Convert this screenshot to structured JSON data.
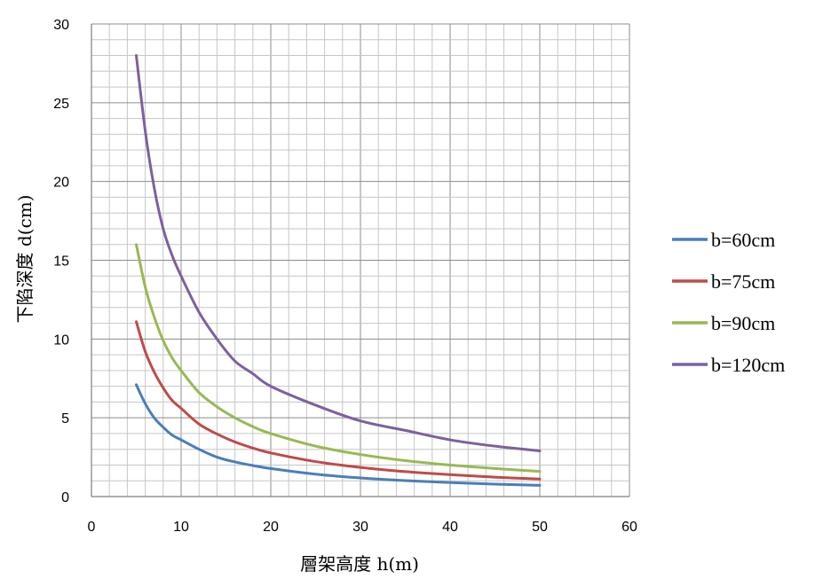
{
  "chart_data": {
    "type": "line",
    "xlabel": "層架高度 h(m)",
    "ylabel": "下陷深度 d(cm)",
    "xlim": [
      0,
      60
    ],
    "ylim": [
      0,
      30
    ],
    "x_ticks": [
      "0",
      "10",
      "20",
      "30",
      "40",
      "50",
      "60"
    ],
    "y_ticks": [
      "0",
      "5",
      "10",
      "15",
      "20",
      "25",
      "30"
    ],
    "grid": true,
    "legend_position": "right",
    "x": [
      5,
      6,
      7,
      8,
      9,
      10,
      12,
      14,
      16,
      18,
      20,
      25,
      30,
      35,
      40,
      45,
      50
    ],
    "series": [
      {
        "name": "b=60cm",
        "color": "#4a7ebb",
        "values": [
          7.1,
          5.9,
          5.0,
          4.4,
          3.9,
          3.6,
          3.0,
          2.5,
          2.2,
          1.97,
          1.78,
          1.42,
          1.18,
          1.01,
          0.89,
          0.79,
          0.71
        ]
      },
      {
        "name": "b=75cm",
        "color": "#be4b48",
        "values": [
          11.1,
          9.2,
          7.9,
          6.9,
          6.1,
          5.6,
          4.6,
          3.97,
          3.47,
          3.08,
          2.77,
          2.22,
          1.85,
          1.58,
          1.39,
          1.23,
          1.11
        ]
      },
      {
        "name": "b=90cm",
        "color": "#98b954",
        "values": [
          16.0,
          13.3,
          11.4,
          9.9,
          8.8,
          8.0,
          6.6,
          5.7,
          5.0,
          4.44,
          4.0,
          3.2,
          2.67,
          2.28,
          2.0,
          1.78,
          1.6
        ]
      },
      {
        "name": "b=120cm",
        "color": "#7d60a0",
        "values": [
          28.0,
          23.2,
          19.6,
          17.0,
          15.3,
          14.0,
          11.7,
          10.0,
          8.6,
          7.8,
          7.0,
          5.8,
          4.8,
          4.2,
          3.6,
          3.2,
          2.9
        ]
      }
    ]
  }
}
